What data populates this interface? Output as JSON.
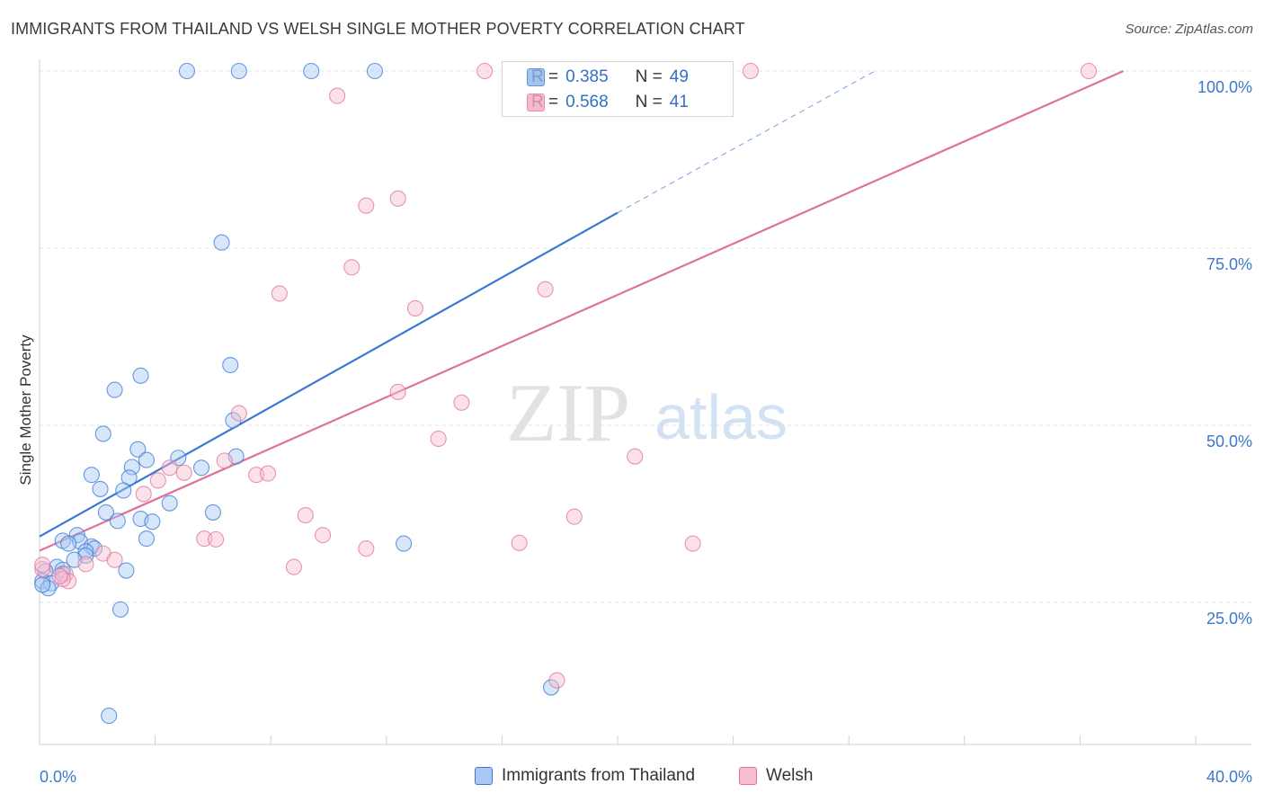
{
  "header": {
    "title": "IMMIGRANTS FROM THAILAND VS WELSH SINGLE MOTHER POVERTY CORRELATION CHART",
    "source": "Source: ZipAtlas.com"
  },
  "watermark": {
    "zip": "ZIP",
    "atlas": "atlas"
  },
  "legend_stats": [
    {
      "r_label": "R =",
      "r_value": "0.385",
      "n_label": "N =",
      "n_value": "49",
      "color": "#8fb5ec"
    },
    {
      "r_label": "R =",
      "r_value": "0.568",
      "n_label": "N =",
      "n_value": "41",
      "color": "#f3a9c0"
    }
  ],
  "chart_data": {
    "type": "scatter",
    "title": "IMMIGRANTS FROM THAILAND VS WELSH SINGLE MOTHER POVERTY CORRELATION CHART",
    "xlabel": "",
    "ylabel": "Single Mother Poverty",
    "xlim": [
      0,
      40
    ],
    "ylim": [
      5,
      102
    ],
    "x_tick_labels": [
      "0.0%",
      "40.0%"
    ],
    "y_ticks": [
      25,
      50,
      75,
      100
    ],
    "y_tick_labels": [
      "25.0%",
      "50.0%",
      "75.0%",
      "100.0%"
    ],
    "grid": true,
    "series": [
      {
        "name": "Immigrants from Thailand",
        "color": "#3a78d4",
        "fill": "#a9c7f2",
        "points": [
          [
            5.1,
            100
          ],
          [
            6.9,
            100
          ],
          [
            9.4,
            100
          ],
          [
            11.6,
            100
          ],
          [
            6.3,
            75.8
          ],
          [
            6.6,
            58.5
          ],
          [
            3.5,
            57.0
          ],
          [
            2.6,
            55.0
          ],
          [
            2.2,
            48.8
          ],
          [
            6.7,
            50.7
          ],
          [
            3.4,
            46.6
          ],
          [
            6.8,
            45.6
          ],
          [
            3.7,
            45.1
          ],
          [
            4.8,
            45.4
          ],
          [
            3.2,
            44.1
          ],
          [
            1.8,
            43.0
          ],
          [
            3.1,
            42.6
          ],
          [
            5.6,
            44.0
          ],
          [
            2.1,
            41.0
          ],
          [
            2.9,
            40.8
          ],
          [
            4.5,
            39.0
          ],
          [
            2.3,
            37.7
          ],
          [
            6.0,
            37.7
          ],
          [
            2.7,
            36.5
          ],
          [
            3.5,
            36.8
          ],
          [
            3.9,
            36.4
          ],
          [
            1.3,
            34.5
          ],
          [
            3.7,
            34.0
          ],
          [
            0.8,
            33.7
          ],
          [
            1.4,
            33.6
          ],
          [
            1.0,
            33.3
          ],
          [
            1.8,
            32.9
          ],
          [
            1.9,
            32.6
          ],
          [
            1.6,
            32.2
          ],
          [
            1.6,
            31.6
          ],
          [
            1.2,
            31.0
          ],
          [
            12.6,
            33.3
          ],
          [
            0.6,
            30.0
          ],
          [
            0.8,
            29.6
          ],
          [
            0.8,
            29.0
          ],
          [
            3.0,
            29.5
          ],
          [
            0.2,
            29.4
          ],
          [
            0.1,
            28.0
          ],
          [
            0.4,
            27.7
          ],
          [
            0.3,
            27.0
          ],
          [
            2.8,
            24.0
          ],
          [
            17.7,
            13.0
          ],
          [
            2.4,
            9.0
          ],
          [
            0.1,
            27.5
          ]
        ],
        "trend": {
          "x0": 0,
          "y0": 34.3,
          "x1": 20,
          "y1": 80.0,
          "dash_to_x": 28.9,
          "dash_to_y": 100
        }
      },
      {
        "name": "Welsh",
        "color": "#e0719a",
        "fill": "#f6bfd0",
        "points": [
          [
            15.4,
            100
          ],
          [
            24.6,
            100
          ],
          [
            36.3,
            100
          ],
          [
            10.3,
            96.5
          ],
          [
            11.3,
            81.0
          ],
          [
            12.4,
            82.0
          ],
          [
            10.8,
            72.3
          ],
          [
            8.3,
            68.6
          ],
          [
            13.0,
            66.5
          ],
          [
            17.5,
            69.2
          ],
          [
            12.4,
            54.7
          ],
          [
            14.6,
            53.2
          ],
          [
            6.9,
            51.7
          ],
          [
            13.8,
            48.1
          ],
          [
            20.6,
            45.6
          ],
          [
            6.4,
            45.0
          ],
          [
            4.5,
            44.0
          ],
          [
            5.0,
            43.3
          ],
          [
            7.5,
            43.0
          ],
          [
            7.9,
            43.2
          ],
          [
            4.1,
            42.2
          ],
          [
            3.6,
            40.3
          ],
          [
            9.2,
            37.3
          ],
          [
            18.5,
            37.1
          ],
          [
            9.8,
            34.5
          ],
          [
            5.7,
            34.0
          ],
          [
            6.1,
            33.9
          ],
          [
            16.6,
            33.4
          ],
          [
            22.6,
            33.3
          ],
          [
            11.3,
            32.6
          ],
          [
            2.2,
            31.9
          ],
          [
            2.6,
            31.0
          ],
          [
            1.6,
            30.4
          ],
          [
            8.8,
            30.0
          ],
          [
            0.9,
            29.0
          ],
          [
            1.0,
            28.0
          ],
          [
            0.8,
            28.3
          ],
          [
            0.1,
            29.7
          ],
          [
            0.1,
            30.3
          ],
          [
            17.9,
            14.0
          ],
          [
            0.7,
            28.7
          ]
        ],
        "trend": {
          "x0": 0,
          "y0": 32.3,
          "x1": 37.5,
          "y1": 100
        }
      }
    ]
  },
  "legend_bottom": [
    {
      "label": "Immigrants from Thailand",
      "color": "#a9c7f2",
      "border": "#3a78d4"
    },
    {
      "label": "Welsh",
      "color": "#f6bfd0",
      "border": "#e0719a"
    }
  ]
}
